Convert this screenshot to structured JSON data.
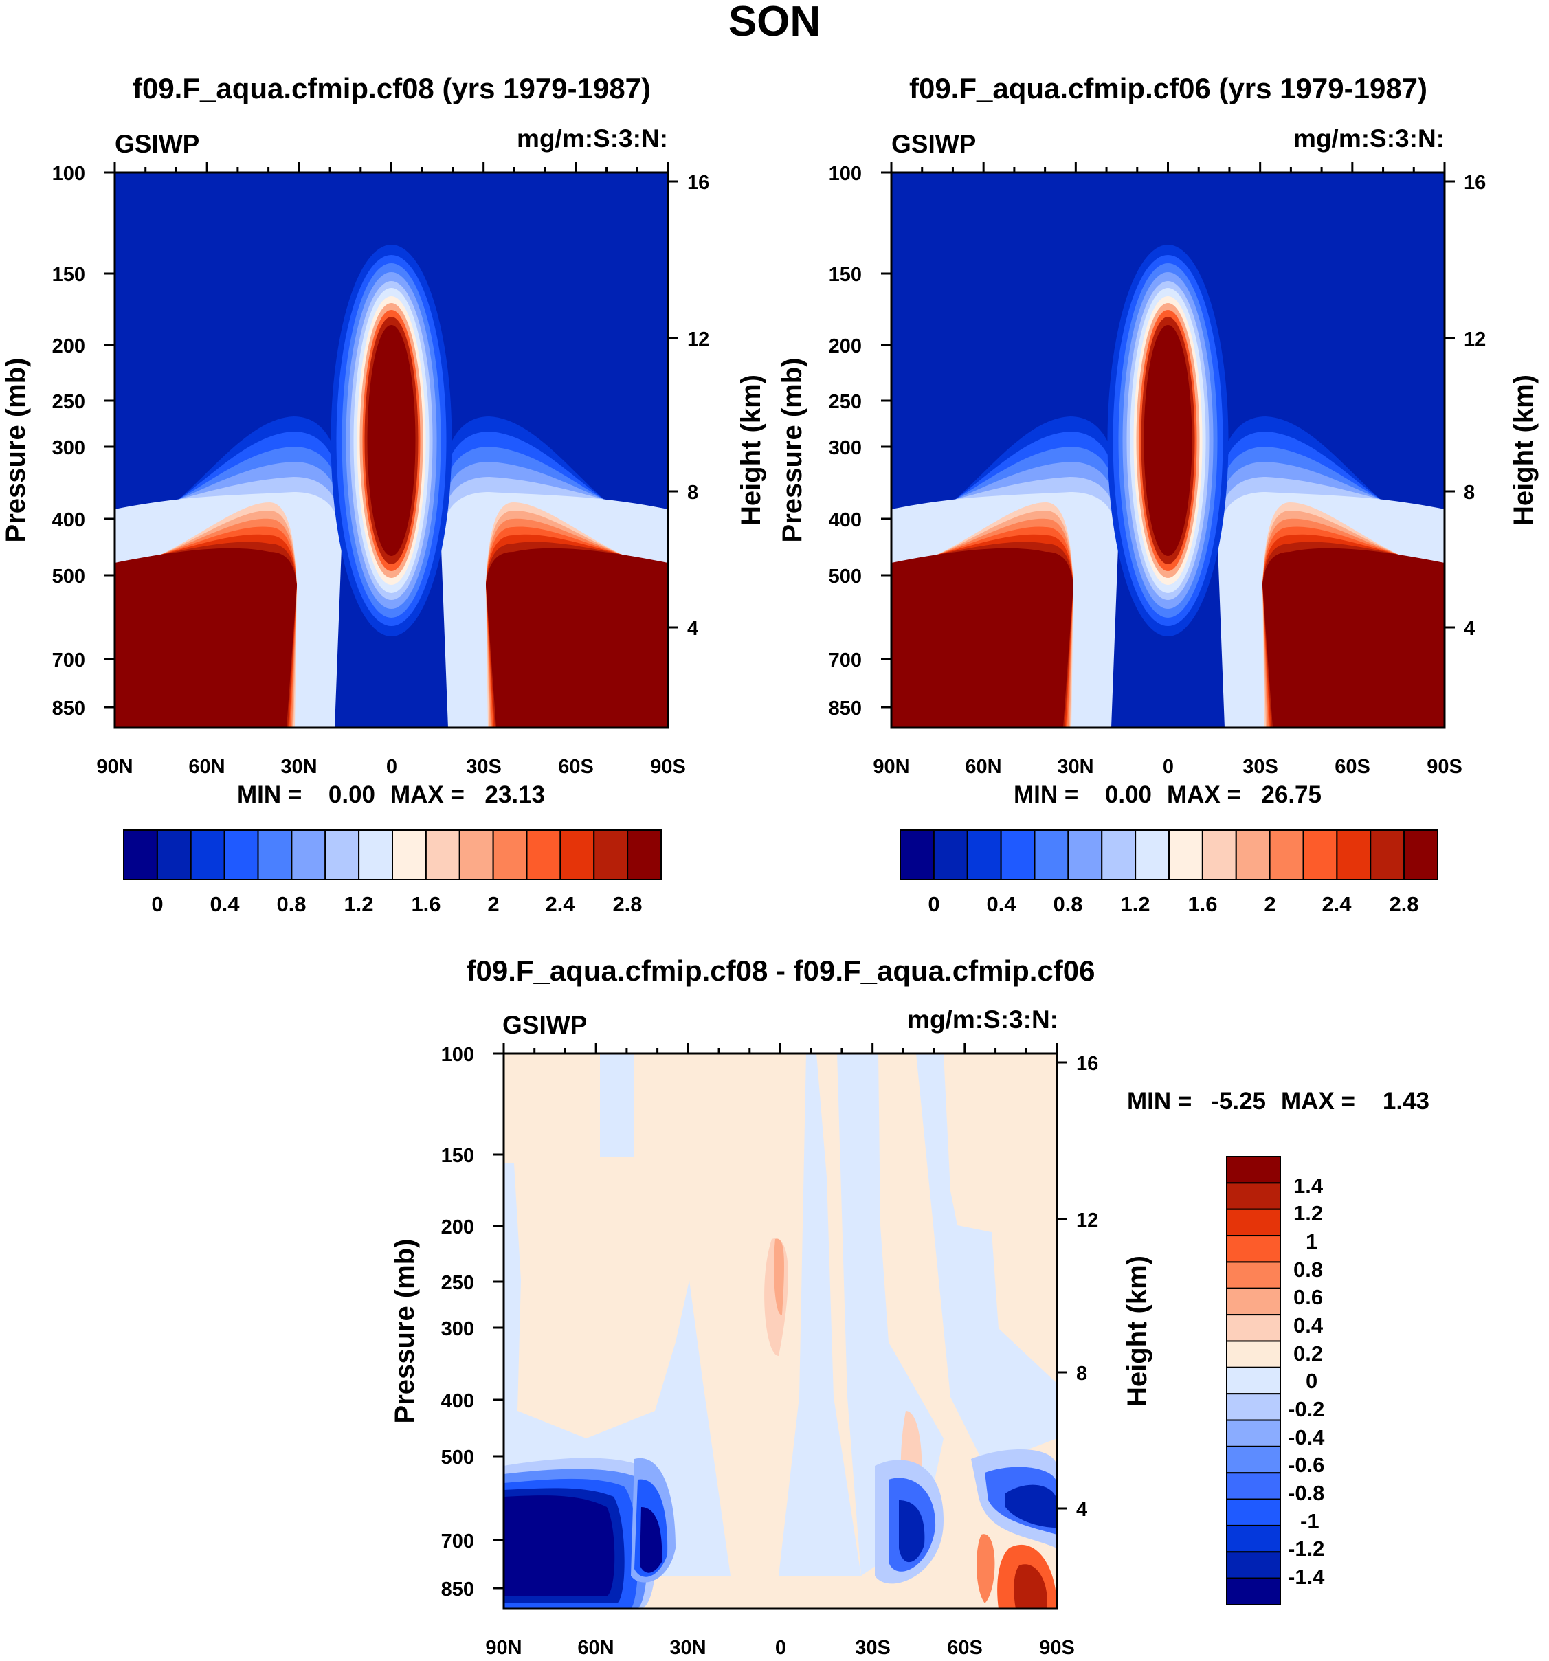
{
  "page_title": "SON",
  "colors": {
    "abs_levels": [
      "#00008c",
      "#0022b4",
      "#0438dc",
      "#1f5aff",
      "#4a80ff",
      "#7ea3ff",
      "#b2c9ff",
      "#dbe9ff",
      "#fff0e2",
      "#fdd0bb",
      "#fcaa88",
      "#fd8356",
      "#fd5c2a",
      "#e53409",
      "#b61f08",
      "#8b0000"
    ],
    "diff_levels": [
      "#00008c",
      "#0022b4",
      "#0438dc",
      "#1f5aff",
      "#3b6cff",
      "#5d8cff",
      "#8aacff",
      "#b7ccff",
      "#dbe9ff",
      "#fdebd9",
      "#fdd0bb",
      "#fcaa88",
      "#fd8356",
      "#fd5c2a",
      "#e53409",
      "#b61f08",
      "#8b0000"
    ]
  },
  "chart_data": [
    {
      "type": "heatmap",
      "id": "cf08",
      "title": "f09.F_aqua.cfmip.cf08 (yrs 1979-1987)",
      "left_label": "GSIWP",
      "right_label": "mg/m:S:3:N:",
      "ylabel": "Pressure (mb)",
      "y2label": "Height (km)",
      "xticks": [
        "90N",
        "60N",
        "30N",
        "0",
        "30S",
        "60S",
        "90S"
      ],
      "yticks": [
        "100",
        "150",
        "200",
        "250",
        "300",
        "400",
        "500",
        "700",
        "850"
      ],
      "y2ticks": [
        "16",
        "12",
        "8",
        "4"
      ],
      "stats": {
        "min_label": "MIN =",
        "min": "0.00",
        "max_label": "MAX =",
        "max": "23.13"
      },
      "colorbar_labels": [
        "0",
        "0.4",
        "0.8",
        "1.2",
        "1.6",
        "2",
        "2.4",
        "2.8"
      ]
    },
    {
      "type": "heatmap",
      "id": "cf06",
      "title": "f09.F_aqua.cfmip.cf06 (yrs 1979-1987)",
      "left_label": "GSIWP",
      "right_label": "mg/m:S:3:N:",
      "ylabel": "Pressure (mb)",
      "y2label": "Height (km)",
      "xticks": [
        "90N",
        "60N",
        "30N",
        "0",
        "30S",
        "60S",
        "90S"
      ],
      "yticks": [
        "100",
        "150",
        "200",
        "250",
        "300",
        "400",
        "500",
        "700",
        "850"
      ],
      "y2ticks": [
        "16",
        "12",
        "8",
        "4"
      ],
      "stats": {
        "min_label": "MIN =",
        "min": "0.00",
        "max_label": "MAX =",
        "max": "26.75"
      },
      "colorbar_labels": [
        "0",
        "0.4",
        "0.8",
        "1.2",
        "1.6",
        "2",
        "2.4",
        "2.8"
      ]
    },
    {
      "type": "heatmap",
      "id": "diff",
      "title": "f09.F_aqua.cfmip.cf08 - f09.F_aqua.cfmip.cf06",
      "left_label": "GSIWP",
      "right_label": "mg/m:S:3:N:",
      "ylabel": "Pressure (mb)",
      "y2label": "Height (km)",
      "xticks": [
        "90N",
        "60N",
        "30N",
        "0",
        "30S",
        "60S",
        "90S"
      ],
      "yticks": [
        "100",
        "150",
        "200",
        "250",
        "300",
        "400",
        "500",
        "700",
        "850"
      ],
      "y2ticks": [
        "16",
        "12",
        "8",
        "4"
      ],
      "stats": {
        "min_label": "MIN =",
        "min": "-5.25",
        "max_label": "MAX =",
        "max": "1.43"
      },
      "colorbar_labels": [
        "1.4",
        "1.2",
        "1",
        "0.8",
        "0.6",
        "0.4",
        "0.2",
        "0",
        "-0.2",
        "-0.4",
        "-0.6",
        "-0.8",
        "-1",
        "-1.2",
        "-1.4"
      ]
    }
  ]
}
